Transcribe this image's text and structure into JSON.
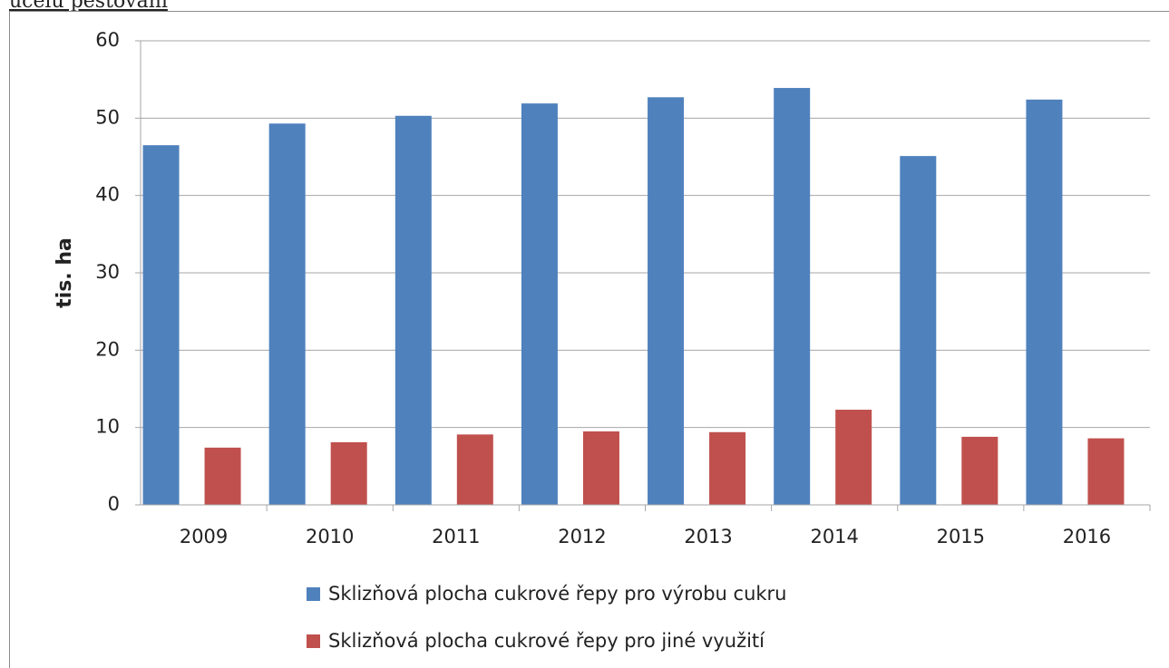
{
  "caption": "účelu pěstování",
  "chart_data": {
    "type": "bar",
    "ylabel": "tis. ha",
    "categories": [
      "2009",
      "2010",
      "2011",
      "2012",
      "2013",
      "2014",
      "2015",
      "2016"
    ],
    "series": [
      {
        "name": "Sklizňová plocha cukrové řepy pro výrobu cukru",
        "color": "#4f81bd",
        "values": [
          46.5,
          49.3,
          50.3,
          51.9,
          52.7,
          53.9,
          45.1,
          52.4
        ]
      },
      {
        "name": "Sklizňová plocha cukrové řepy pro jiné využití",
        "color": "#c0504d",
        "values": [
          7.4,
          8.1,
          9.1,
          9.5,
          9.4,
          12.3,
          8.8,
          8.6
        ]
      }
    ],
    "ylim": [
      0,
      60
    ],
    "yticks": [
      0,
      10,
      20,
      30,
      40,
      50,
      60
    ],
    "grid": true,
    "legend": "bottom"
  }
}
